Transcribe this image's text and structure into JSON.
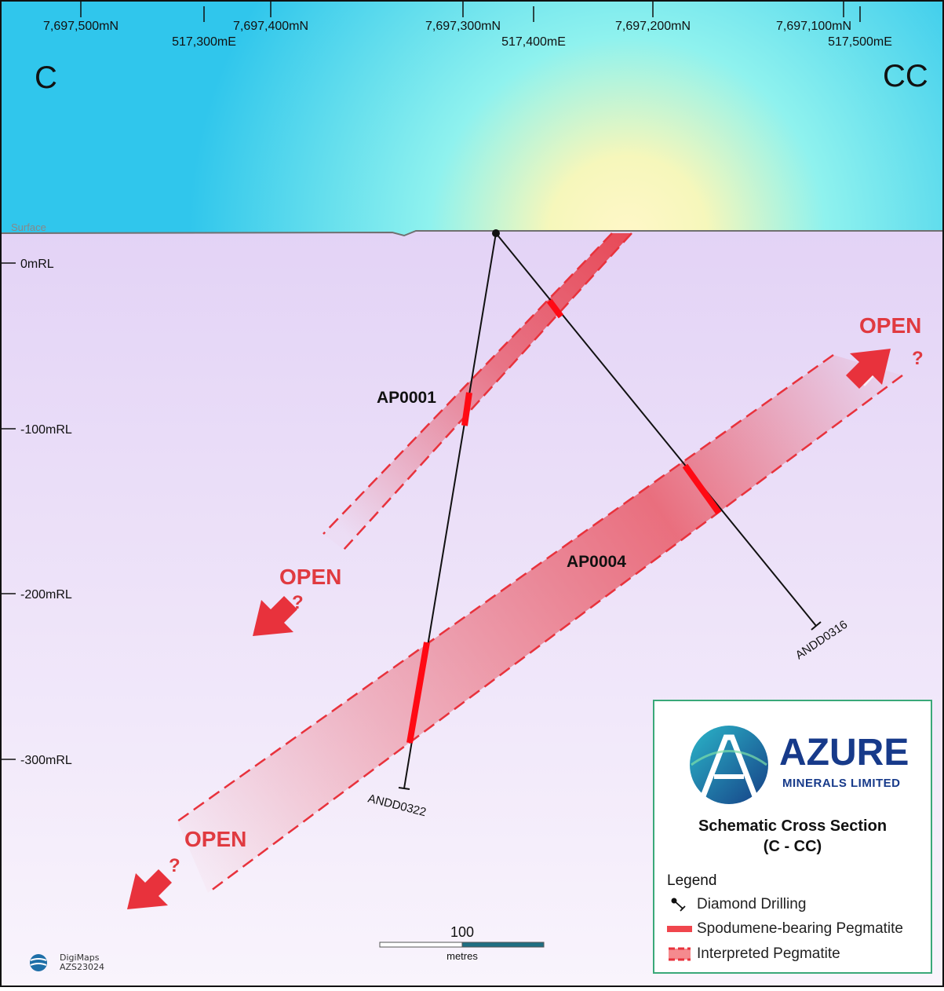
{
  "section": {
    "corner_left": "C",
    "corner_right": "CC",
    "surface_label": "Surface",
    "northings": [
      "7,697,500mN",
      "7,697,400mN",
      "7,697,300mN",
      "7,697,200mN",
      "7,697,100mN"
    ],
    "eastings": [
      "517,300mE",
      "517,400mE",
      "517,500mE"
    ],
    "elevations": [
      "0mRL",
      "-100mRL",
      "-200mRL",
      "-300mRL"
    ],
    "pegmatites": [
      "AP0001",
      "AP0004"
    ],
    "drillholes": [
      "ANDD0316",
      "ANDD0322"
    ],
    "open_label": "OPEN",
    "question_mark": "?"
  },
  "scale": {
    "value": "100",
    "unit": "metres"
  },
  "legend": {
    "company_name": "AZURE",
    "company_sub": "MINERALS LIMITED",
    "title_line1": "Schematic Cross Section",
    "title_line2": "(C - CC)",
    "heading": "Legend",
    "items": [
      {
        "label": "Diamond Drilling",
        "icon": "drillhole-icon"
      },
      {
        "label": "Spodumene-bearing Pegmatite",
        "icon": "pegmatite-bar-icon"
      },
      {
        "label": "Interpreted Pegmatite",
        "icon": "interpreted-pegmatite-icon"
      }
    ]
  },
  "credit": {
    "line1": "DigiMaps",
    "line2": "AZS23024"
  },
  "colors": {
    "sky_top": "#2ec7ec",
    "ground": "#e9dcf7",
    "pegmatite": "#e8323c",
    "border_green": "#3aa879",
    "brand_blue": "#173a8a"
  }
}
